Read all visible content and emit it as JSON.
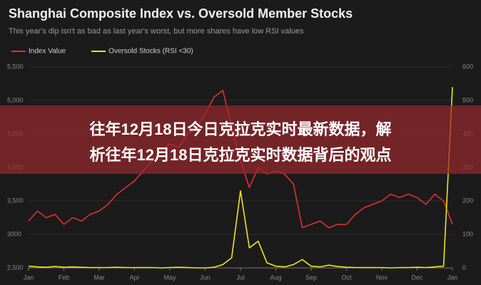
{
  "chart_data": {
    "type": "line",
    "title": "Shanghai Composite Index vs. Oversold Member Stocks",
    "subtitle": "This year's dip isn't as bad as last year's worst, but more shares have low RSI values",
    "categories": [
      "Jan",
      null,
      null,
      null,
      "Feb",
      null,
      null,
      null,
      "Mar",
      null,
      null,
      null,
      "Apr",
      null,
      null,
      null,
      "May",
      null,
      null,
      null,
      "Jun",
      null,
      null,
      null,
      "Jul",
      null,
      null,
      null,
      "Aug",
      null,
      null,
      null,
      "Sep",
      null,
      null,
      null,
      "Oct",
      null,
      null,
      null,
      "Nov",
      null,
      null,
      null,
      "Dec",
      null,
      null,
      null,
      "Jan"
    ],
    "series": [
      {
        "name": "Index Value",
        "color": "#e0302a",
        "values": [
          3200,
          3350,
          3250,
          3300,
          3150,
          3250,
          3200,
          3300,
          3350,
          3450,
          3600,
          3700,
          3800,
          3950,
          4100,
          4250,
          4350,
          4300,
          4500,
          4600,
          4800,
          5050,
          5150,
          4600,
          4100,
          3700,
          4000,
          3900,
          3950,
          3900,
          3750,
          3100,
          3150,
          3200,
          3100,
          3150,
          3150,
          3300,
          3400,
          3450,
          3500,
          3600,
          3550,
          3600,
          3550,
          3450,
          3600,
          3500,
          3150
        ]
      },
      {
        "name": "Oversold Stocks (RSI <30)",
        "color": "#f2e21a",
        "axis": "y2",
        "values": [
          5,
          3,
          2,
          4,
          2,
          3,
          2,
          1,
          1,
          1,
          2,
          1,
          1,
          1,
          1,
          0,
          1,
          2,
          1,
          0,
          0,
          2,
          10,
          30,
          230,
          60,
          80,
          15,
          5,
          3,
          10,
          25,
          5,
          3,
          8,
          4,
          2,
          1,
          1,
          1,
          1,
          0,
          1,
          1,
          2,
          1,
          3,
          5,
          540
        ]
      }
    ],
    "ylim": [
      2500,
      5500
    ],
    "yticks": [
      {
        "value": 2500,
        "label": "2,500"
      },
      3000,
      {
        "value": 3500,
        "label": "3,500"
      },
      {
        "value": 4000,
        "label": "4,000"
      },
      {
        "value": 4500,
        "label": "4,500"
      },
      {
        "value": 5000,
        "label": "5,000"
      },
      {
        "value": 5500,
        "label": "5,500"
      }
    ],
    "y2lim": [
      0,
      600
    ],
    "y2ticks": [
      0,
      100,
      200,
      300,
      400,
      500,
      600
    ],
    "grid": true
  },
  "banner": {
    "lines": [
      "往年12月18日今日克拉克实时最新数据，解",
      "析往年12月18日克拉克实时数据背后的观点"
    ]
  }
}
